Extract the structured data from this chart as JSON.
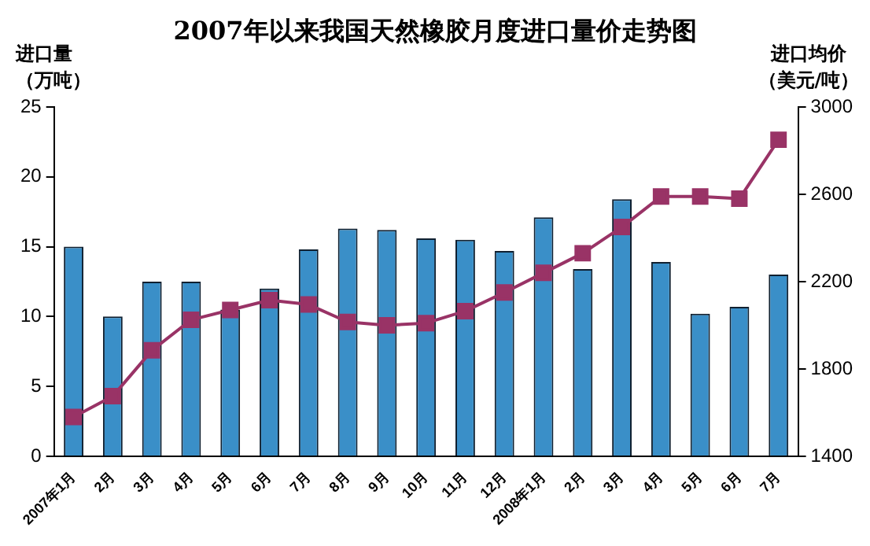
{
  "chart_data": {
    "type": "bar",
    "title": "2007年以来我国天然橡胶月度进口量价走势图",
    "ylabel": "进口量（万吨）",
    "y2label": "进口均价（美元/吨）",
    "categories": [
      "2007年1月",
      "2月",
      "3月",
      "4月",
      "5月",
      "6月",
      "7月",
      "8月",
      "9月",
      "10月",
      "11月",
      "12月",
      "2008年1月",
      "2月",
      "3月",
      "4月",
      "5月",
      "6月",
      "7月"
    ],
    "series": [
      {
        "color": "#3a8fc8",
        "values": [
          15,
          10,
          12.5,
          12.5,
          10.5,
          12,
          14.8,
          16.3,
          16.2,
          15.6,
          15.5,
          14.7,
          17.1,
          13.4,
          18.4,
          13.9,
          10.2,
          10.7,
          13
        ]
      },
      {
        "type": "line",
        "axis": "y2",
        "color": "#993366",
        "marker": "square",
        "values": [
          1580,
          1675,
          1885,
          2025,
          2070,
          2115,
          2095,
          2015,
          2000,
          2010,
          2065,
          2150,
          2240,
          2330,
          2450,
          2590,
          2590,
          2580,
          2850
        ]
      }
    ],
    "ylim": [
      0,
      25
    ],
    "yticks": [
      0,
      5,
      10,
      15,
      20,
      25
    ],
    "y2lim": [
      1400,
      3000
    ],
    "y2ticks": [
      1400,
      1800,
      2200,
      2600,
      3000
    ],
    "grid": false,
    "legend": false
  }
}
